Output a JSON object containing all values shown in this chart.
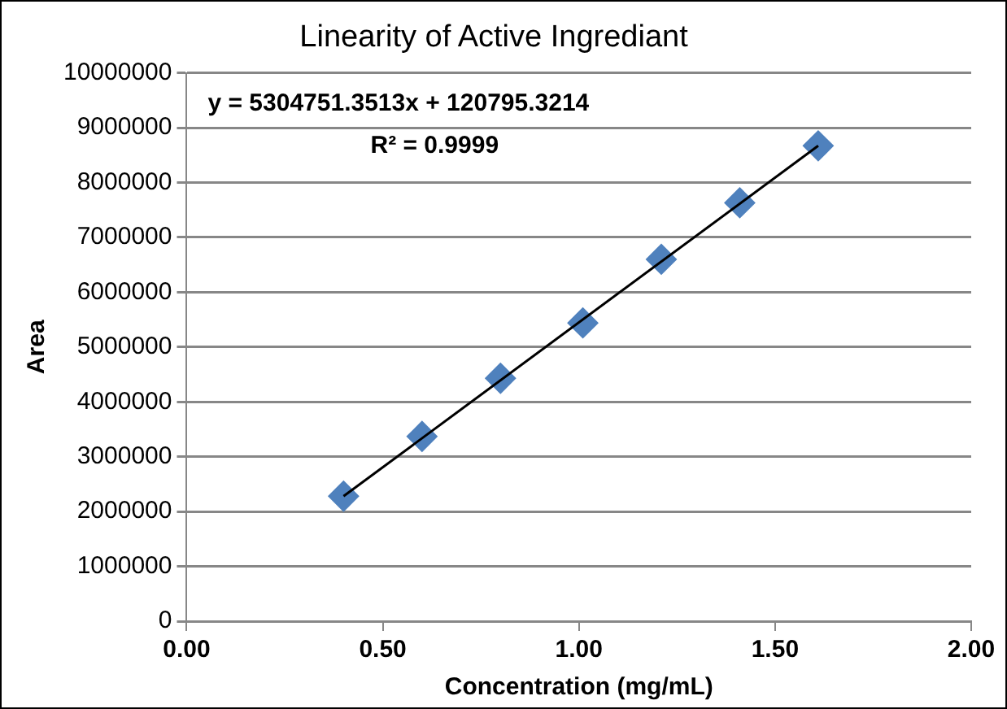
{
  "chart_data": {
    "type": "scatter",
    "title": "Linearity of Active Ingrediant",
    "xlabel": "Concentration (mg/mL)",
    "ylabel": "Area",
    "annotations": [
      "y = 5304751.3513x + 120795.3214",
      "R² = 0.9999"
    ],
    "series": [
      {
        "type": "scatter",
        "color": "#4f81bd",
        "marker": "diamond",
        "x": [
          0.4,
          0.6,
          0.8,
          1.01,
          1.21,
          1.41,
          1.61
        ],
        "values": [
          2280000,
          3370000,
          4430000,
          5440000,
          6600000,
          7630000,
          8670000
        ]
      },
      {
        "type": "line",
        "color": "#000000",
        "marker": "none",
        "x": [
          0.4,
          1.61
        ],
        "values": [
          2280000,
          8670000
        ]
      }
    ],
    "xlim": [
      0,
      2
    ],
    "xticks": [
      {
        "value": 0,
        "label": "0.00"
      },
      {
        "value": 0.5,
        "label": "0.50"
      },
      {
        "value": 1,
        "label": "1.00"
      },
      {
        "value": 1.5,
        "label": "1.50"
      },
      {
        "value": 2,
        "label": "2.00"
      }
    ],
    "ylim": [
      0,
      10000000
    ],
    "yticks": [
      0,
      1000000,
      2000000,
      3000000,
      4000000,
      5000000,
      6000000,
      7000000,
      8000000,
      9000000,
      10000000
    ],
    "grid": "y",
    "legend": false
  }
}
